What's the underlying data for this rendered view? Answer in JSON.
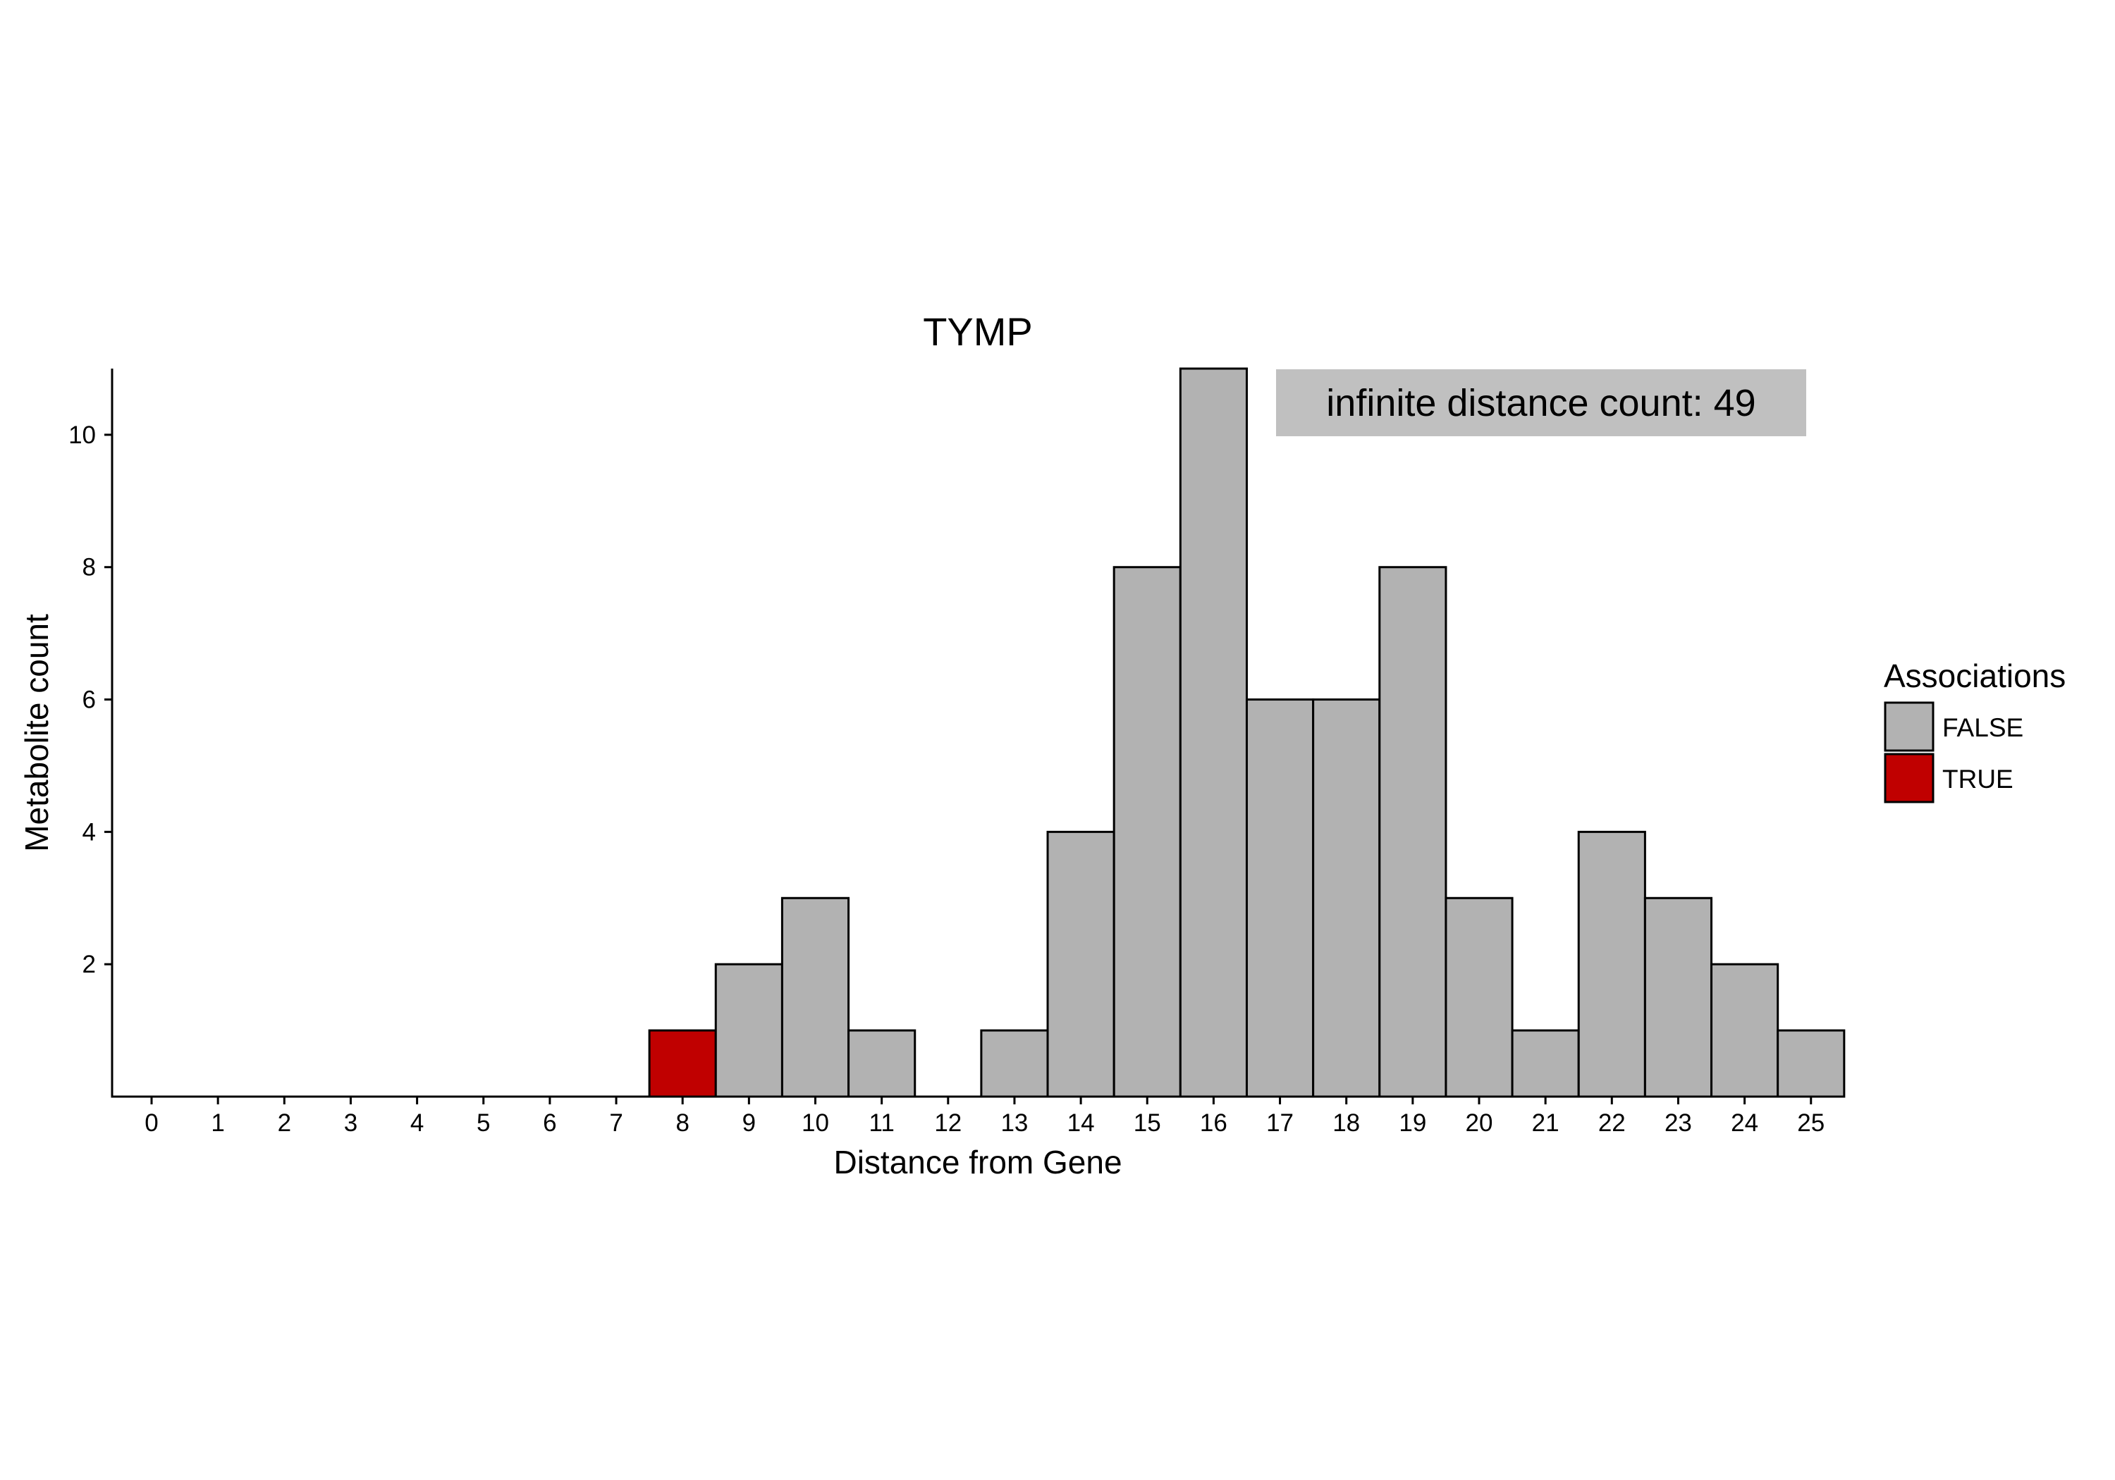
{
  "chart_data": {
    "type": "bar",
    "title": "TYMP",
    "xlabel": "Distance from Gene",
    "ylabel": "Metabolite count",
    "categories": [
      "0",
      "1",
      "2",
      "3",
      "4",
      "5",
      "6",
      "7",
      "8",
      "9",
      "10",
      "11",
      "12",
      "13",
      "14",
      "15",
      "16",
      "17",
      "18",
      "19",
      "20",
      "21",
      "22",
      "23",
      "24",
      "25"
    ],
    "values": [
      0,
      0,
      0,
      0,
      0,
      0,
      0,
      0,
      1,
      2,
      3,
      1,
      0,
      1,
      4,
      8,
      11,
      6,
      6,
      8,
      3,
      1,
      4,
      3,
      2,
      1
    ],
    "associations": [
      false,
      false,
      false,
      false,
      false,
      false,
      false,
      false,
      true,
      false,
      false,
      false,
      false,
      false,
      false,
      false,
      false,
      false,
      false,
      false,
      false,
      false,
      false,
      false,
      false,
      false
    ],
    "ylim": [
      0,
      11
    ],
    "yticks": [
      2,
      4,
      6,
      8,
      10
    ],
    "grid": false,
    "legend": {
      "title": "Associations",
      "placement": "right",
      "entries": [
        {
          "label": "FALSE",
          "color": "#b2b2b2"
        },
        {
          "label": "TRUE",
          "color": "#c00000"
        }
      ]
    },
    "annotation": {
      "text": "infinite distance count: 49",
      "placement": "top-right",
      "background": "#c0c0c0"
    }
  }
}
